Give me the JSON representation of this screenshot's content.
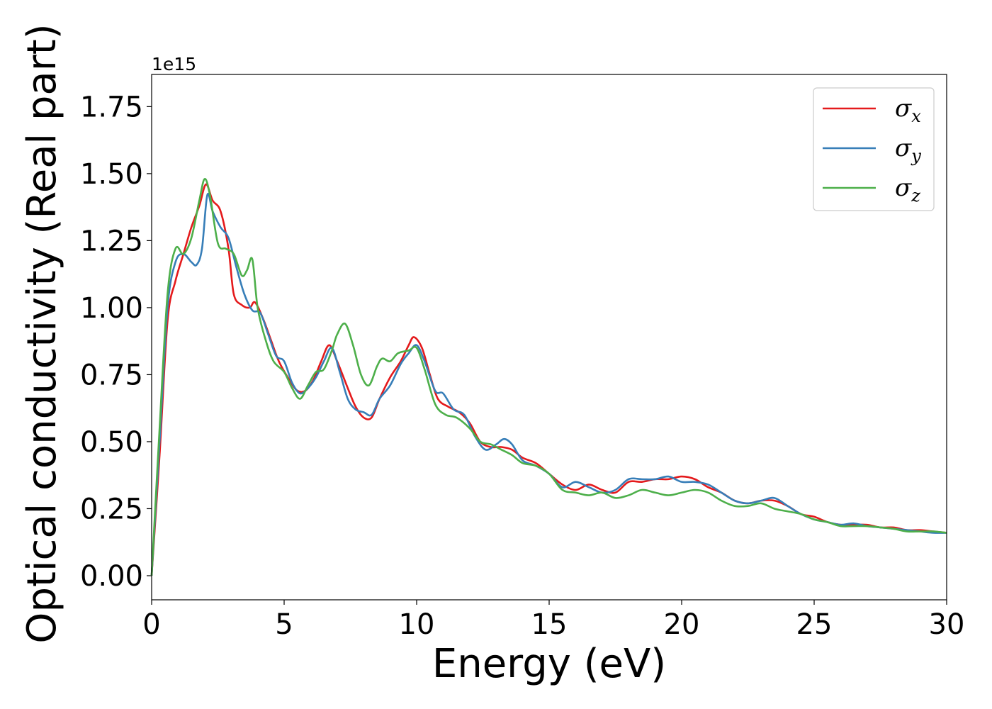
{
  "chart_data": {
    "type": "line",
    "xlabel": "Energy (eV)",
    "ylabel": "Optical conductivity (Real part)",
    "y_offset_label": "1e15",
    "xlim": [
      0,
      30
    ],
    "ylim": [
      -0.09,
      1.87
    ],
    "y_multiplier": 1000000000000000.0,
    "x_ticks": [
      0,
      5,
      10,
      15,
      20,
      25,
      30
    ],
    "x_tick_labels": [
      "0",
      "5",
      "10",
      "15",
      "20",
      "25",
      "30"
    ],
    "y_ticks": [
      0.0,
      0.25,
      0.5,
      0.75,
      1.0,
      1.25,
      1.5,
      1.75
    ],
    "y_tick_labels": [
      "0.00",
      "0.25",
      "0.50",
      "0.75",
      "1.00",
      "1.25",
      "1.50",
      "1.75"
    ],
    "grid": false,
    "legend_position": "top-right",
    "series": [
      {
        "name": "σx",
        "symbol": "σ",
        "subscript": "x",
        "color": "#e41a1c",
        "points": [
          [
            0,
            0
          ],
          [
            0.3,
            0.45
          ],
          [
            0.6,
            0.95
          ],
          [
            0.9,
            1.1
          ],
          [
            1.2,
            1.2
          ],
          [
            1.5,
            1.3
          ],
          [
            1.8,
            1.38
          ],
          [
            2.05,
            1.46
          ],
          [
            2.3,
            1.4
          ],
          [
            2.6,
            1.36
          ],
          [
            2.9,
            1.22
          ],
          [
            3.1,
            1.05
          ],
          [
            3.4,
            1.01
          ],
          [
            3.7,
            1.0
          ],
          [
            3.9,
            1.02
          ],
          [
            4.2,
            0.96
          ],
          [
            4.5,
            0.88
          ],
          [
            4.8,
            0.8
          ],
          [
            5.2,
            0.73
          ],
          [
            5.5,
            0.69
          ],
          [
            5.8,
            0.69
          ],
          [
            6.1,
            0.73
          ],
          [
            6.4,
            0.8
          ],
          [
            6.7,
            0.86
          ],
          [
            7.0,
            0.8
          ],
          [
            7.4,
            0.7
          ],
          [
            7.7,
            0.63
          ],
          [
            8.0,
            0.59
          ],
          [
            8.3,
            0.59
          ],
          [
            8.6,
            0.66
          ],
          [
            9.0,
            0.74
          ],
          [
            9.4,
            0.8
          ],
          [
            9.7,
            0.86
          ],
          [
            9.9,
            0.89
          ],
          [
            10.2,
            0.85
          ],
          [
            10.5,
            0.75
          ],
          [
            10.8,
            0.66
          ],
          [
            11.2,
            0.63
          ],
          [
            11.6,
            0.61
          ],
          [
            12.0,
            0.57
          ],
          [
            12.4,
            0.5
          ],
          [
            12.8,
            0.48
          ],
          [
            13.2,
            0.48
          ],
          [
            13.6,
            0.47
          ],
          [
            14.0,
            0.44
          ],
          [
            14.5,
            0.42
          ],
          [
            15.0,
            0.38
          ],
          [
            15.5,
            0.34
          ],
          [
            16.0,
            0.32
          ],
          [
            16.5,
            0.34
          ],
          [
            17.0,
            0.32
          ],
          [
            17.5,
            0.31
          ],
          [
            18.0,
            0.35
          ],
          [
            18.5,
            0.35
          ],
          [
            19.0,
            0.36
          ],
          [
            19.5,
            0.36
          ],
          [
            20.0,
            0.37
          ],
          [
            20.5,
            0.36
          ],
          [
            21.0,
            0.33
          ],
          [
            21.5,
            0.31
          ],
          [
            22.0,
            0.28
          ],
          [
            22.5,
            0.27
          ],
          [
            23.0,
            0.28
          ],
          [
            23.5,
            0.28
          ],
          [
            24.0,
            0.26
          ],
          [
            24.5,
            0.23
          ],
          [
            25.0,
            0.22
          ],
          [
            25.5,
            0.2
          ],
          [
            26.0,
            0.19
          ],
          [
            26.5,
            0.19
          ],
          [
            27.0,
            0.19
          ],
          [
            27.5,
            0.18
          ],
          [
            28.0,
            0.18
          ],
          [
            28.5,
            0.17
          ],
          [
            29.0,
            0.17
          ],
          [
            29.5,
            0.165
          ],
          [
            30.0,
            0.16
          ]
        ]
      },
      {
        "name": "σy",
        "symbol": "σ",
        "subscript": "y",
        "color": "#377eb8",
        "points": [
          [
            0,
            0
          ],
          [
            0.3,
            0.5
          ],
          [
            0.6,
            1.0
          ],
          [
            0.9,
            1.17
          ],
          [
            1.2,
            1.2
          ],
          [
            1.5,
            1.17
          ],
          [
            1.7,
            1.16
          ],
          [
            1.9,
            1.22
          ],
          [
            2.1,
            1.42
          ],
          [
            2.3,
            1.36
          ],
          [
            2.6,
            1.3
          ],
          [
            2.9,
            1.26
          ],
          [
            3.2,
            1.15
          ],
          [
            3.5,
            1.05
          ],
          [
            3.8,
            0.99
          ],
          [
            4.1,
            0.98
          ],
          [
            4.4,
            0.9
          ],
          [
            4.7,
            0.82
          ],
          [
            5.0,
            0.8
          ],
          [
            5.3,
            0.72
          ],
          [
            5.6,
            0.68
          ],
          [
            5.9,
            0.7
          ],
          [
            6.2,
            0.74
          ],
          [
            6.5,
            0.8
          ],
          [
            6.8,
            0.85
          ],
          [
            7.1,
            0.76
          ],
          [
            7.4,
            0.66
          ],
          [
            7.7,
            0.62
          ],
          [
            8.0,
            0.61
          ],
          [
            8.3,
            0.6
          ],
          [
            8.6,
            0.66
          ],
          [
            9.0,
            0.71
          ],
          [
            9.4,
            0.79
          ],
          [
            9.7,
            0.83
          ],
          [
            10.0,
            0.86
          ],
          [
            10.3,
            0.8
          ],
          [
            10.7,
            0.69
          ],
          [
            11.0,
            0.68
          ],
          [
            11.4,
            0.62
          ],
          [
            11.8,
            0.6
          ],
          [
            12.2,
            0.52
          ],
          [
            12.6,
            0.47
          ],
          [
            13.0,
            0.49
          ],
          [
            13.3,
            0.51
          ],
          [
            13.6,
            0.49
          ],
          [
            14.0,
            0.43
          ],
          [
            14.5,
            0.41
          ],
          [
            15.0,
            0.38
          ],
          [
            15.5,
            0.33
          ],
          [
            16.0,
            0.35
          ],
          [
            16.5,
            0.33
          ],
          [
            17.0,
            0.31
          ],
          [
            17.5,
            0.32
          ],
          [
            18.0,
            0.36
          ],
          [
            18.5,
            0.36
          ],
          [
            19.0,
            0.36
          ],
          [
            19.5,
            0.37
          ],
          [
            20.0,
            0.35
          ],
          [
            20.5,
            0.35
          ],
          [
            21.0,
            0.34
          ],
          [
            21.5,
            0.31
          ],
          [
            22.0,
            0.28
          ],
          [
            22.5,
            0.27
          ],
          [
            23.0,
            0.28
          ],
          [
            23.5,
            0.29
          ],
          [
            24.0,
            0.26
          ],
          [
            24.5,
            0.23
          ],
          [
            25.0,
            0.21
          ],
          [
            25.5,
            0.2
          ],
          [
            26.0,
            0.19
          ],
          [
            26.5,
            0.195
          ],
          [
            27.0,
            0.185
          ],
          [
            27.5,
            0.18
          ],
          [
            28.0,
            0.175
          ],
          [
            28.5,
            0.17
          ],
          [
            29.0,
            0.165
          ],
          [
            29.5,
            0.16
          ],
          [
            30.0,
            0.16
          ]
        ]
      },
      {
        "name": "σz",
        "symbol": "σ",
        "subscript": "z",
        "color": "#4daf4a",
        "points": [
          [
            0,
            0
          ],
          [
            0.3,
            0.55
          ],
          [
            0.6,
            1.05
          ],
          [
            0.9,
            1.22
          ],
          [
            1.2,
            1.2
          ],
          [
            1.5,
            1.26
          ],
          [
            1.8,
            1.4
          ],
          [
            2.0,
            1.48
          ],
          [
            2.2,
            1.42
          ],
          [
            2.5,
            1.24
          ],
          [
            2.8,
            1.22
          ],
          [
            3.1,
            1.2
          ],
          [
            3.4,
            1.12
          ],
          [
            3.6,
            1.14
          ],
          [
            3.8,
            1.18
          ],
          [
            4.0,
            1.0
          ],
          [
            4.3,
            0.88
          ],
          [
            4.6,
            0.8
          ],
          [
            5.0,
            0.76
          ],
          [
            5.3,
            0.7
          ],
          [
            5.6,
            0.66
          ],
          [
            5.9,
            0.71
          ],
          [
            6.2,
            0.76
          ],
          [
            6.5,
            0.77
          ],
          [
            6.8,
            0.84
          ],
          [
            7.0,
            0.9
          ],
          [
            7.3,
            0.94
          ],
          [
            7.6,
            0.86
          ],
          [
            7.9,
            0.75
          ],
          [
            8.2,
            0.71
          ],
          [
            8.5,
            0.78
          ],
          [
            8.7,
            0.81
          ],
          [
            9.0,
            0.8
          ],
          [
            9.3,
            0.83
          ],
          [
            9.7,
            0.84
          ],
          [
            10.0,
            0.85
          ],
          [
            10.3,
            0.77
          ],
          [
            10.7,
            0.64
          ],
          [
            11.1,
            0.6
          ],
          [
            11.5,
            0.59
          ],
          [
            12.0,
            0.55
          ],
          [
            12.4,
            0.5
          ],
          [
            12.8,
            0.49
          ],
          [
            13.2,
            0.47
          ],
          [
            13.6,
            0.45
          ],
          [
            14.0,
            0.42
          ],
          [
            14.5,
            0.41
          ],
          [
            15.0,
            0.38
          ],
          [
            15.5,
            0.32
          ],
          [
            16.0,
            0.31
          ],
          [
            16.5,
            0.3
          ],
          [
            17.0,
            0.31
          ],
          [
            17.5,
            0.29
          ],
          [
            18.0,
            0.3
          ],
          [
            18.5,
            0.32
          ],
          [
            19.0,
            0.31
          ],
          [
            19.5,
            0.3
          ],
          [
            20.0,
            0.31
          ],
          [
            20.5,
            0.32
          ],
          [
            21.0,
            0.31
          ],
          [
            21.5,
            0.28
          ],
          [
            22.0,
            0.26
          ],
          [
            22.5,
            0.26
          ],
          [
            23.0,
            0.27
          ],
          [
            23.5,
            0.25
          ],
          [
            24.0,
            0.24
          ],
          [
            24.5,
            0.23
          ],
          [
            25.0,
            0.21
          ],
          [
            25.5,
            0.2
          ],
          [
            26.0,
            0.185
          ],
          [
            26.5,
            0.185
          ],
          [
            27.0,
            0.185
          ],
          [
            27.5,
            0.18
          ],
          [
            28.0,
            0.175
          ],
          [
            28.5,
            0.165
          ],
          [
            29.0,
            0.165
          ],
          [
            29.5,
            0.165
          ],
          [
            30.0,
            0.16
          ]
        ]
      }
    ]
  }
}
